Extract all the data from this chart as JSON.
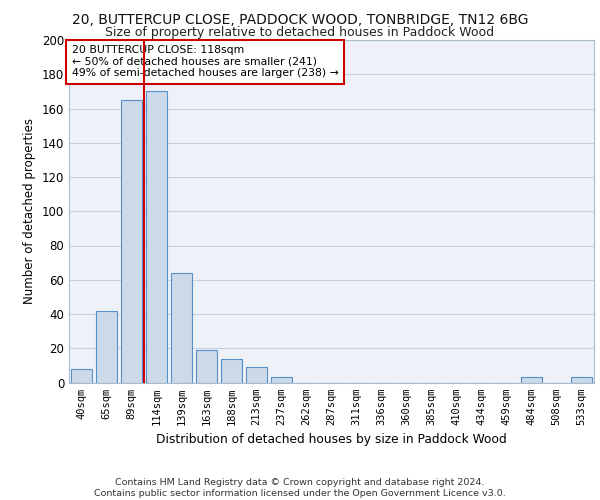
{
  "title": "20, BUTTERCUP CLOSE, PADDOCK WOOD, TONBRIDGE, TN12 6BG",
  "subtitle": "Size of property relative to detached houses in Paddock Wood",
  "xlabel": "Distribution of detached houses by size in Paddock Wood",
  "ylabel": "Number of detached properties",
  "bar_values": [
    8,
    42,
    165,
    170,
    64,
    19,
    14,
    9,
    3,
    0,
    0,
    0,
    0,
    0,
    0,
    0,
    0,
    0,
    3,
    0,
    3
  ],
  "bar_labels": [
    "40sqm",
    "65sqm",
    "89sqm",
    "114sqm",
    "139sqm",
    "163sqm",
    "188sqm",
    "213sqm",
    "237sqm",
    "262sqm",
    "287sqm",
    "311sqm",
    "336sqm",
    "360sqm",
    "385sqm",
    "410sqm",
    "434sqm",
    "459sqm",
    "484sqm",
    "508sqm",
    "533sqm"
  ],
  "bar_color": "#ccd9e8",
  "bar_edge_color": "#5590c8",
  "bar_linewidth": 0.8,
  "red_line_x": 2.5,
  "red_line_color": "#cc0000",
  "annotation_text": "20 BUTTERCUP CLOSE: 118sqm\n← 50% of detached houses are smaller (241)\n49% of semi-detached houses are larger (238) →",
  "annotation_box_color": "white",
  "annotation_box_edgecolor": "#cc0000",
  "ylim": [
    0,
    200
  ],
  "yticks": [
    0,
    20,
    40,
    60,
    80,
    100,
    120,
    140,
    160,
    180,
    200
  ],
  "footer": "Contains HM Land Registry data © Crown copyright and database right 2024.\nContains public sector information licensed under the Open Government Licence v3.0.",
  "bg_color": "#eef2f8",
  "grid_color": "#c8d0de",
  "title_fontsize": 10,
  "subtitle_fontsize": 9
}
